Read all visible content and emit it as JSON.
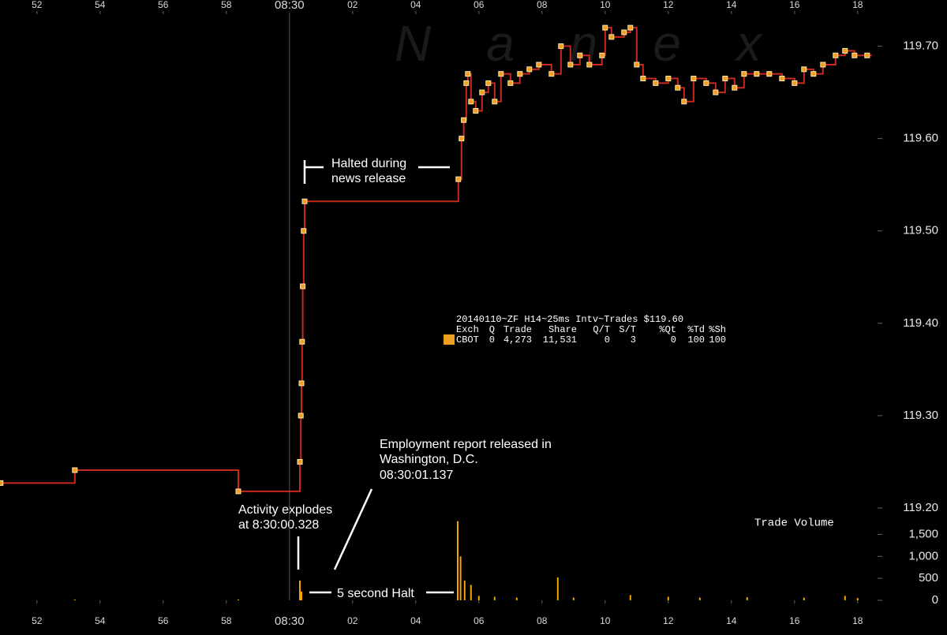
{
  "chart_data": [
    {
      "type": "line",
      "watermark": "Nanex",
      "info": {
        "title": "20140110~ZF H14~25ms Intv~Trades $119.60",
        "columns": [
          "Exch",
          "Q",
          "Trade",
          "Share",
          "Q/T",
          "S/T",
          "%Qt",
          "%Td",
          "%Sh"
        ],
        "rows": [
          [
            "CBOT",
            "0",
            "4,273",
            "11,531",
            "0",
            "3",
            "0",
            "100",
            "100"
          ]
        ]
      },
      "annotations": [
        "Halted during",
        "news release",
        "Employment report released in",
        "Washington, D.C.",
        "08:30:01.137",
        "Activity explodes",
        "at 8:30:00.328",
        "5 second Halt"
      ],
      "xlim": [
        50.83,
        78.63
      ],
      "xticks": [
        {
          "value": 52,
          "label": "52"
        },
        {
          "value": 54,
          "label": "54"
        },
        {
          "value": 56,
          "label": "56"
        },
        {
          "value": 58,
          "label": "58"
        },
        {
          "value": 60,
          "label": "08:30"
        },
        {
          "value": 62,
          "label": "02"
        },
        {
          "value": 64,
          "label": "04"
        },
        {
          "value": 66,
          "label": "06"
        },
        {
          "value": 68,
          "label": "08"
        },
        {
          "value": 70,
          "label": "10"
        },
        {
          "value": 72,
          "label": "12"
        },
        {
          "value": 74,
          "label": "14"
        },
        {
          "value": 76,
          "label": "16"
        },
        {
          "value": 78,
          "label": "18"
        }
      ],
      "ylim": [
        119.2,
        119.75
      ],
      "yticks": [
        {
          "value": 119.2,
          "label": "119.20"
        },
        {
          "value": 119.3,
          "label": "119.30"
        },
        {
          "value": 119.4,
          "label": "119.40"
        },
        {
          "value": 119.5,
          "label": "119.50"
        },
        {
          "value": 119.6,
          "label": "119.60"
        },
        {
          "value": 119.7,
          "label": "119.70"
        }
      ],
      "x": [
        50.85,
        53.2,
        58.38,
        60.33,
        60.36,
        60.38,
        60.4,
        60.42,
        60.45,
        60.48,
        65.35,
        65.45,
        65.52,
        65.6,
        65.65,
        65.75,
        65.9,
        66.1,
        66.3,
        66.5,
        66.7,
        67.0,
        67.3,
        67.6,
        67.9,
        68.3,
        68.6,
        68.9,
        69.2,
        69.5,
        69.9,
        70.0,
        70.2,
        70.6,
        70.8,
        71.0,
        71.2,
        71.6,
        72.0,
        72.3,
        72.5,
        72.8,
        73.2,
        73.5,
        73.8,
        74.1,
        74.4,
        74.8,
        75.2,
        75.6,
        76.0,
        76.3,
        76.6,
        76.9,
        77.3,
        77.6,
        77.9,
        78.3
      ],
      "series": [
        {
          "color": "#c8281e",
          "marker_color": "#f0a020",
          "values": [
            119.227,
            119.241,
            119.218,
            119.25,
            119.3,
            119.335,
            119.38,
            119.44,
            119.5,
            119.532,
            119.556,
            119.6,
            119.62,
            119.66,
            119.67,
            119.64,
            119.63,
            119.65,
            119.66,
            119.64,
            119.67,
            119.66,
            119.67,
            119.675,
            119.68,
            119.67,
            119.7,
            119.68,
            119.69,
            119.68,
            119.69,
            119.72,
            119.71,
            119.715,
            119.72,
            119.68,
            119.665,
            119.66,
            119.665,
            119.655,
            119.64,
            119.665,
            119.66,
            119.65,
            119.665,
            119.655,
            119.67,
            119.67,
            119.67,
            119.665,
            119.66,
            119.675,
            119.67,
            119.68,
            119.69,
            119.695,
            119.69,
            119.69
          ]
        }
      ]
    },
    {
      "type": "bar",
      "title": "Trade Volume",
      "color": "#f5a300",
      "xlim": [
        50.83,
        78.63
      ],
      "xticks": [
        {
          "value": 52,
          "label": "52"
        },
        {
          "value": 54,
          "label": "54"
        },
        {
          "value": 56,
          "label": "56"
        },
        {
          "value": 58,
          "label": "58"
        },
        {
          "value": 60,
          "label": "08:30"
        },
        {
          "value": 62,
          "label": "02"
        },
        {
          "value": 64,
          "label": "04"
        },
        {
          "value": 66,
          "label": "06"
        },
        {
          "value": 68,
          "label": "08"
        },
        {
          "value": 70,
          "label": "10"
        },
        {
          "value": 72,
          "label": "12"
        },
        {
          "value": 74,
          "label": "14"
        },
        {
          "value": 76,
          "label": "16"
        },
        {
          "value": 78,
          "label": "18"
        }
      ],
      "ylim": [
        0,
        2100
      ],
      "yticks": [
        0,
        500,
        {
          "value": 1000,
          "label": "1,000"
        },
        {
          "value": 1500,
          "label": "1,500"
        }
      ],
      "x": [
        53.2,
        58.38,
        60.33,
        60.38,
        65.33,
        65.42,
        65.55,
        65.75,
        66.0,
        66.5,
        67.2,
        68.5,
        69.0,
        70.8,
        72.0,
        73.0,
        74.5,
        76.3,
        77.6,
        78.0
      ],
      "values": [
        20,
        20,
        450,
        200,
        1800,
        1000,
        450,
        350,
        100,
        80,
        60,
        520,
        60,
        120,
        80,
        60,
        70,
        60,
        100,
        50
      ]
    }
  ]
}
